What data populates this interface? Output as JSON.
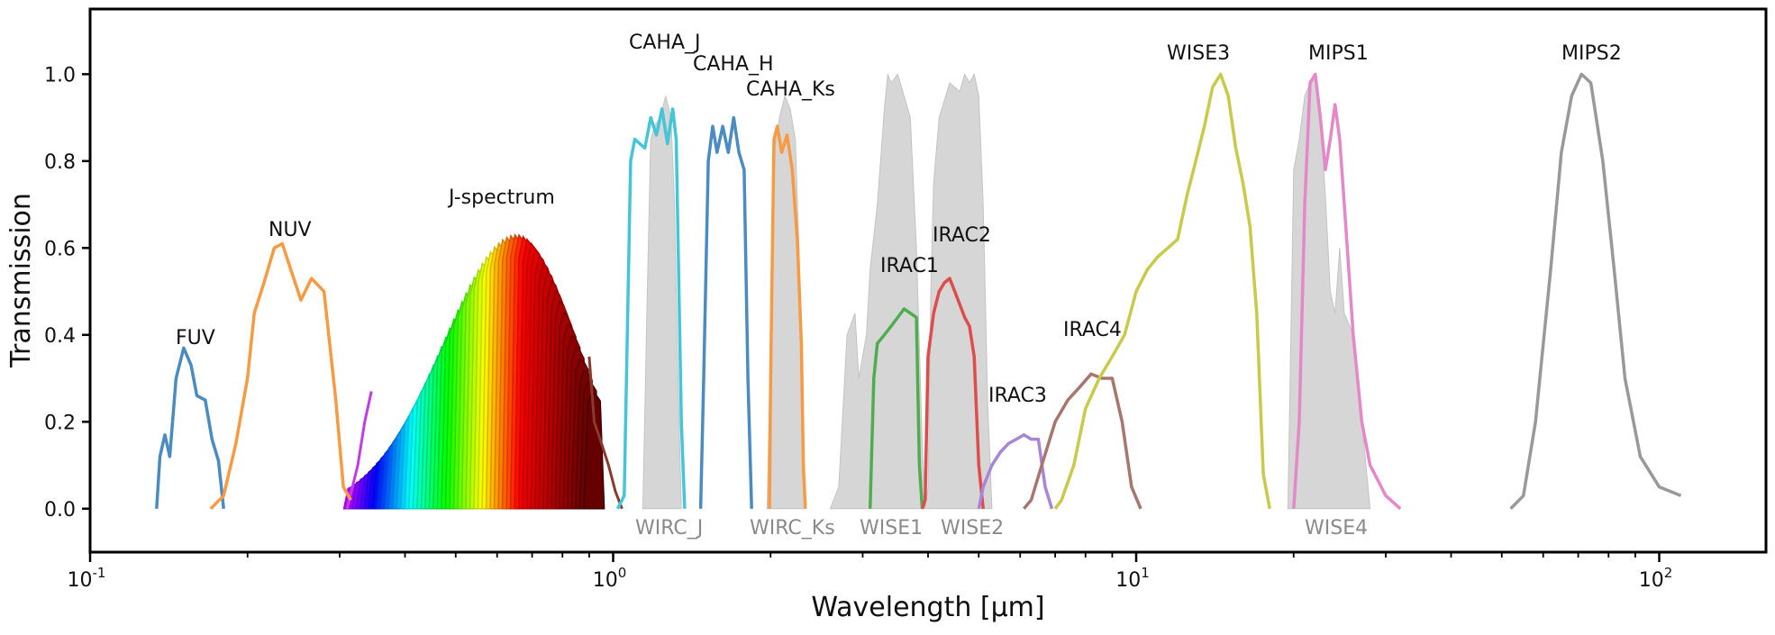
{
  "chart_data": {
    "type": "line",
    "xlabel": "Wavelength [μm]",
    "ylabel": "Transmission",
    "xscale": "log",
    "xlim": [
      0.1,
      160
    ],
    "ylim": [
      -0.1,
      1.15
    ],
    "grid": false,
    "x_tick_labels": [
      {
        "value": 0.1,
        "base": "10",
        "exp": "-1"
      },
      {
        "value": 1,
        "base": "10",
        "exp": "0"
      },
      {
        "value": 10,
        "base": "10",
        "exp": "1"
      },
      {
        "value": 100,
        "base": "10",
        "exp": "2"
      }
    ],
    "y_ticks": [
      0.0,
      0.2,
      0.4,
      0.6,
      0.8,
      1.0
    ],
    "y_tick_labels": [
      "0.0",
      "0.2",
      "0.4",
      "0.6",
      "0.8",
      "1.0"
    ],
    "gray_filters": [
      {
        "name": "WIRC_J",
        "points": [
          [
            1.14,
            0
          ],
          [
            1.16,
            0.45
          ],
          [
            1.18,
            0.85
          ],
          [
            1.2,
            0.88
          ],
          [
            1.23,
            0.9
          ],
          [
            1.26,
            0.95
          ],
          [
            1.29,
            0.9
          ],
          [
            1.31,
            0.7
          ],
          [
            1.33,
            0.3
          ],
          [
            1.35,
            0
          ]
        ]
      },
      {
        "name": "WIRC_Ks",
        "points": [
          [
            1.97,
            0
          ],
          [
            2.0,
            0.4
          ],
          [
            2.03,
            0.82
          ],
          [
            2.08,
            0.9
          ],
          [
            2.13,
            0.95
          ],
          [
            2.18,
            0.92
          ],
          [
            2.23,
            0.85
          ],
          [
            2.28,
            0.5
          ],
          [
            2.32,
            0
          ]
        ]
      },
      {
        "name": "WISE1",
        "points": [
          [
            2.6,
            0
          ],
          [
            2.7,
            0.05
          ],
          [
            2.8,
            0.4
          ],
          [
            2.9,
            0.45
          ],
          [
            2.95,
            0.3
          ],
          [
            3.05,
            0.4
          ],
          [
            3.1,
            0.55
          ],
          [
            3.2,
            0.7
          ],
          [
            3.3,
            0.92
          ],
          [
            3.35,
            1.0
          ],
          [
            3.4,
            0.98
          ],
          [
            3.5,
            1.0
          ],
          [
            3.6,
            0.95
          ],
          [
            3.7,
            0.9
          ],
          [
            3.8,
            0.6
          ],
          [
            3.9,
            0.15
          ],
          [
            3.95,
            0
          ]
        ]
      },
      {
        "name": "WISE2",
        "points": [
          [
            3.95,
            0
          ],
          [
            4.0,
            0.05
          ],
          [
            4.05,
            0.5
          ],
          [
            4.1,
            0.75
          ],
          [
            4.2,
            0.9
          ],
          [
            4.4,
            0.98
          ],
          [
            4.6,
            0.96
          ],
          [
            4.7,
            1.0
          ],
          [
            4.8,
            0.98
          ],
          [
            4.9,
            1.0
          ],
          [
            5.0,
            0.95
          ],
          [
            5.1,
            0.7
          ],
          [
            5.2,
            0.25
          ],
          [
            5.3,
            0
          ]
        ]
      },
      {
        "name": "WISE4",
        "points": [
          [
            19.5,
            0
          ],
          [
            19.7,
            0.3
          ],
          [
            20.0,
            0.78
          ],
          [
            20.5,
            0.85
          ],
          [
            21.0,
            0.95
          ],
          [
            21.5,
            0.98
          ],
          [
            22.0,
            1.0
          ],
          [
            22.5,
            0.9
          ],
          [
            23.0,
            0.72
          ],
          [
            23.5,
            0.5
          ],
          [
            24.0,
            0.45
          ],
          [
            24.5,
            0.6
          ],
          [
            25.0,
            0.45
          ],
          [
            26.0,
            0.4
          ],
          [
            27.0,
            0.2
          ],
          [
            28.0,
            0
          ]
        ]
      }
    ],
    "series": [
      {
        "name": "FUV",
        "color": "#4a8cc2",
        "points": [
          [
            0.134,
            0
          ],
          [
            0.136,
            0.12
          ],
          [
            0.139,
            0.17
          ],
          [
            0.142,
            0.12
          ],
          [
            0.146,
            0.3
          ],
          [
            0.151,
            0.37
          ],
          [
            0.156,
            0.33
          ],
          [
            0.16,
            0.26
          ],
          [
            0.166,
            0.25
          ],
          [
            0.171,
            0.16
          ],
          [
            0.176,
            0.11
          ],
          [
            0.18,
            0
          ]
        ]
      },
      {
        "name": "NUV",
        "color": "#f79a42",
        "points": [
          [
            0.17,
            0
          ],
          [
            0.18,
            0.03
          ],
          [
            0.19,
            0.15
          ],
          [
            0.2,
            0.3
          ],
          [
            0.206,
            0.45
          ],
          [
            0.215,
            0.52
          ],
          [
            0.225,
            0.6
          ],
          [
            0.233,
            0.61
          ],
          [
            0.242,
            0.55
          ],
          [
            0.253,
            0.48
          ],
          [
            0.265,
            0.53
          ],
          [
            0.28,
            0.5
          ],
          [
            0.295,
            0.25
          ],
          [
            0.305,
            0.05
          ],
          [
            0.315,
            0.02
          ]
        ]
      },
      {
        "name": "CAHA_J",
        "color": "#45c5d8",
        "points": [
          [
            1.02,
            0
          ],
          [
            1.05,
            0.03
          ],
          [
            1.08,
            0.8
          ],
          [
            1.1,
            0.85
          ],
          [
            1.15,
            0.83
          ],
          [
            1.18,
            0.9
          ],
          [
            1.21,
            0.86
          ],
          [
            1.24,
            0.92
          ],
          [
            1.27,
            0.84
          ],
          [
            1.3,
            0.92
          ],
          [
            1.32,
            0.85
          ],
          [
            1.35,
            0.2
          ],
          [
            1.37,
            0
          ]
        ]
      },
      {
        "name": "CAHA_H",
        "color": "#4a8cc2",
        "points": [
          [
            1.47,
            0
          ],
          [
            1.49,
            0.3
          ],
          [
            1.52,
            0.8
          ],
          [
            1.55,
            0.88
          ],
          [
            1.58,
            0.82
          ],
          [
            1.62,
            0.88
          ],
          [
            1.66,
            0.82
          ],
          [
            1.7,
            0.9
          ],
          [
            1.74,
            0.82
          ],
          [
            1.78,
            0.78
          ],
          [
            1.81,
            0.3
          ],
          [
            1.84,
            0
          ]
        ]
      },
      {
        "name": "CAHA_Ks",
        "color": "#f79a42",
        "points": [
          [
            1.99,
            0
          ],
          [
            2.0,
            0.3
          ],
          [
            2.03,
            0.85
          ],
          [
            2.06,
            0.88
          ],
          [
            2.1,
            0.82
          ],
          [
            2.15,
            0.86
          ],
          [
            2.2,
            0.78
          ],
          [
            2.25,
            0.62
          ],
          [
            2.29,
            0.38
          ],
          [
            2.31,
            0.1
          ],
          [
            2.33,
            0
          ]
        ]
      },
      {
        "name": "IRAC1",
        "color": "#50ad4f",
        "points": [
          [
            3.1,
            0
          ],
          [
            3.15,
            0.3
          ],
          [
            3.2,
            0.38
          ],
          [
            3.3,
            0.4
          ],
          [
            3.4,
            0.42
          ],
          [
            3.5,
            0.44
          ],
          [
            3.6,
            0.46
          ],
          [
            3.7,
            0.45
          ],
          [
            3.8,
            0.44
          ],
          [
            3.85,
            0.1
          ],
          [
            3.9,
            0
          ]
        ]
      },
      {
        "name": "IRAC2",
        "color": "#de4c4c",
        "points": [
          [
            3.9,
            0
          ],
          [
            3.95,
            0.02
          ],
          [
            4.0,
            0.35
          ],
          [
            4.1,
            0.45
          ],
          [
            4.2,
            0.5
          ],
          [
            4.3,
            0.52
          ],
          [
            4.4,
            0.53
          ],
          [
            4.5,
            0.5
          ],
          [
            4.6,
            0.47
          ],
          [
            4.7,
            0.44
          ],
          [
            4.8,
            0.42
          ],
          [
            4.9,
            0.35
          ],
          [
            5.0,
            0.1
          ],
          [
            5.1,
            0
          ]
        ]
      },
      {
        "name": "IRAC3",
        "color": "#a885d6",
        "points": [
          [
            5.0,
            0
          ],
          [
            5.1,
            0.05
          ],
          [
            5.3,
            0.1
          ],
          [
            5.5,
            0.13
          ],
          [
            5.7,
            0.15
          ],
          [
            5.9,
            0.16
          ],
          [
            6.1,
            0.17
          ],
          [
            6.3,
            0.16
          ],
          [
            6.5,
            0.16
          ],
          [
            6.7,
            0.05
          ],
          [
            6.9,
            0
          ]
        ]
      },
      {
        "name": "IRAC4",
        "color": "#a8766d",
        "points": [
          [
            6.1,
            0
          ],
          [
            6.3,
            0.02
          ],
          [
            6.6,
            0.1
          ],
          [
            7.0,
            0.2
          ],
          [
            7.4,
            0.25
          ],
          [
            7.8,
            0.28
          ],
          [
            8.2,
            0.31
          ],
          [
            8.6,
            0.3
          ],
          [
            9.0,
            0.3
          ],
          [
            9.4,
            0.2
          ],
          [
            9.8,
            0.05
          ],
          [
            10.2,
            0
          ]
        ]
      },
      {
        "name": "WISE3",
        "color": "#c9c94a",
        "points": [
          [
            7.0,
            0
          ],
          [
            7.2,
            0.02
          ],
          [
            7.6,
            0.1
          ],
          [
            8.0,
            0.23
          ],
          [
            8.5,
            0.3
          ],
          [
            9.0,
            0.35
          ],
          [
            9.5,
            0.4
          ],
          [
            10.0,
            0.5
          ],
          [
            10.5,
            0.55
          ],
          [
            11.0,
            0.58
          ],
          [
            11.5,
            0.6
          ],
          [
            12.0,
            0.62
          ],
          [
            12.5,
            0.72
          ],
          [
            13.0,
            0.8
          ],
          [
            13.5,
            0.88
          ],
          [
            14.0,
            0.97
          ],
          [
            14.5,
            1.0
          ],
          [
            15.0,
            0.95
          ],
          [
            15.5,
            0.83
          ],
          [
            16.0,
            0.75
          ],
          [
            16.5,
            0.65
          ],
          [
            17.0,
            0.45
          ],
          [
            17.5,
            0.08
          ],
          [
            18.0,
            0
          ]
        ]
      },
      {
        "name": "MIPS1",
        "color": "#e587c8",
        "points": [
          [
            20.0,
            0
          ],
          [
            20.5,
            0.2
          ],
          [
            21.0,
            0.7
          ],
          [
            21.5,
            0.98
          ],
          [
            22.0,
            1.0
          ],
          [
            22.5,
            0.9
          ],
          [
            23.0,
            0.78
          ],
          [
            23.5,
            0.85
          ],
          [
            24.0,
            0.93
          ],
          [
            24.5,
            0.85
          ],
          [
            25.0,
            0.7
          ],
          [
            26.0,
            0.4
          ],
          [
            27.0,
            0.2
          ],
          [
            28.0,
            0.1
          ],
          [
            30.0,
            0.03
          ],
          [
            32.0,
            0
          ]
        ]
      },
      {
        "name": "MIPS2",
        "color": "#999999",
        "points": [
          [
            52,
            0
          ],
          [
            55,
            0.03
          ],
          [
            58,
            0.2
          ],
          [
            62,
            0.55
          ],
          [
            65,
            0.82
          ],
          [
            68,
            0.95
          ],
          [
            71,
            1.0
          ],
          [
            74,
            0.98
          ],
          [
            78,
            0.8
          ],
          [
            82,
            0.55
          ],
          [
            86,
            0.3
          ],
          [
            92,
            0.12
          ],
          [
            100,
            0.05
          ],
          [
            110,
            0.03
          ]
        ]
      }
    ],
    "j_spectrum": {
      "label": "J-spectrum",
      "center_start": 0.32,
      "center_end": 0.92,
      "count": 60,
      "tail_color": "#8a3a2e"
    },
    "labels": {
      "FUV": "FUV",
      "NUV": "NUV",
      "J_spectrum": "J-spectrum",
      "CAHA_J": "CAHA_J",
      "CAHA_H": "CAHA_H",
      "CAHA_Ks": "CAHA_Ks",
      "IRAC1": "IRAC1",
      "IRAC2": "IRAC2",
      "IRAC3": "IRAC3",
      "IRAC4": "IRAC4",
      "WISE3": "WISE3",
      "MIPS1": "MIPS1",
      "MIPS2": "MIPS2",
      "WIRC_J": "WIRC_J",
      "WIRC_Ks": "WIRC_Ks",
      "WISE1": "WISE1",
      "WISE2": "WISE2",
      "WISE4": "WISE4"
    }
  }
}
